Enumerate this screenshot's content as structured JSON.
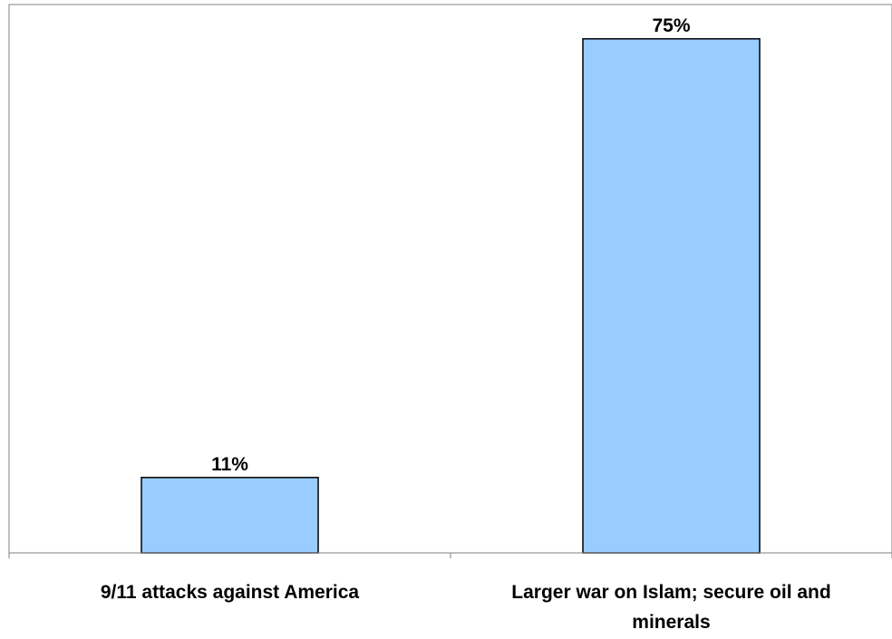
{
  "chart_data": {
    "type": "bar",
    "categories": [
      [
        "9/11 attacks against America"
      ],
      [
        "Larger war on Islam; secure oil and",
        "minerals"
      ]
    ],
    "values": [
      11,
      75
    ],
    "data_labels": [
      "11%",
      "75%"
    ],
    "title": "",
    "xlabel": "",
    "ylabel": "",
    "ylim": [
      0,
      80
    ],
    "grid": false,
    "legend": "none",
    "colors": {
      "bar_fill": "#99CCFF",
      "bar_stroke": "#000000",
      "plot_border": "#808080",
      "axis": "#808080",
      "text": "#000000"
    }
  }
}
